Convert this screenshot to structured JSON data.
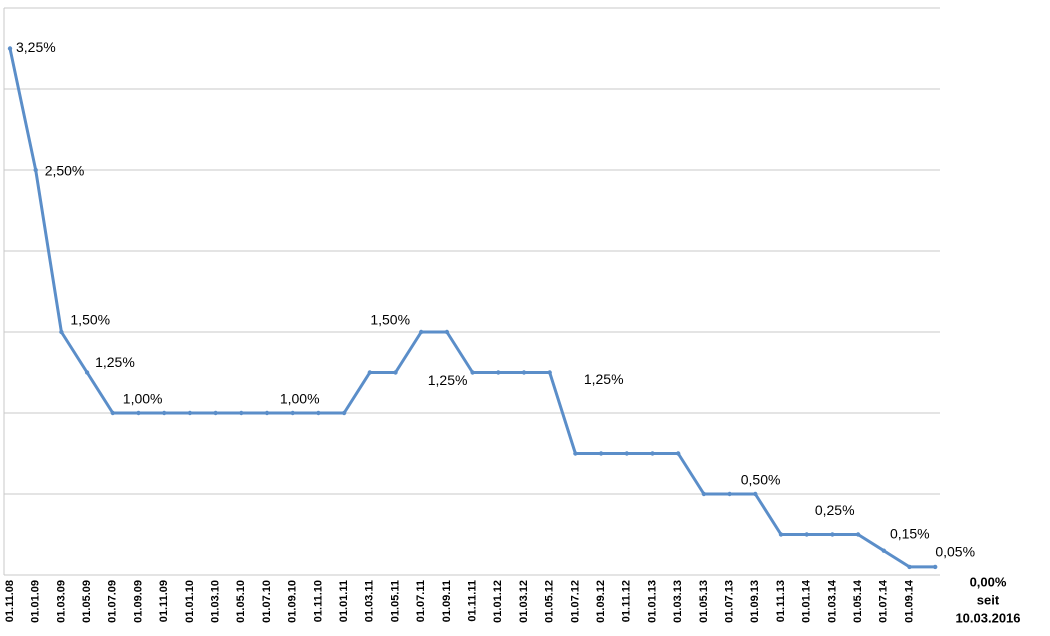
{
  "chart_data": {
    "type": "line",
    "categories": [
      "01.11.08",
      "01.01.09",
      "01.03.09",
      "01.05.09",
      "01.07.09",
      "01.09.09",
      "01.11.09",
      "01.01.10",
      "01.03.10",
      "01.05.10",
      "01.07.10",
      "01.09.10",
      "01.11.10",
      "01.01.11",
      "01.03.11",
      "01.05.11",
      "01.07.11",
      "01.09.11",
      "01.11.11",
      "01.01.12",
      "01.03.12",
      "01.05.12",
      "01.07.12",
      "01.09.12",
      "01.11.12",
      "01.01.13",
      "01.03.13",
      "01.05.13",
      "01.07.13",
      "01.09.13",
      "01.11.13",
      "01.01.14",
      "01.03.14",
      "01.05.14",
      "01.07.14",
      "01.09.14",
      null
    ],
    "series": [
      {
        "color": "#5b8ec9",
        "values": [
          3.25,
          2.5,
          1.5,
          1.25,
          1,
          1,
          1,
          1,
          1,
          1,
          1,
          1,
          1,
          1,
          1.25,
          1.25,
          1.5,
          1.5,
          1.25,
          1.25,
          1.25,
          1.25,
          0.75,
          0.75,
          0.75,
          0.75,
          0.75,
          0.5,
          0.5,
          0.5,
          0.25,
          0.25,
          0.25,
          0.25,
          0.15,
          0.05,
          0.05
        ],
        "value_labels": [
          "3,25%",
          "2,50%",
          "1,50%",
          "1,25%",
          "1,00%",
          null,
          null,
          null,
          null,
          null,
          null,
          "1,00%",
          null,
          null,
          null,
          null,
          "1,50%",
          null,
          "1,25%",
          null,
          null,
          "1,25%",
          null,
          null,
          null,
          null,
          null,
          null,
          "0,50%",
          null,
          null,
          "0,25%",
          null,
          null,
          "0,15%",
          null,
          "0,05%"
        ]
      }
    ],
    "ylim": [
      0,
      3.5
    ],
    "yticks": [
      0,
      0.5,
      1,
      1.5,
      2,
      2.5,
      3,
      3.5
    ],
    "grid": true,
    "annotation": [
      "0,00%",
      "seit",
      "10.03.2016"
    ]
  }
}
